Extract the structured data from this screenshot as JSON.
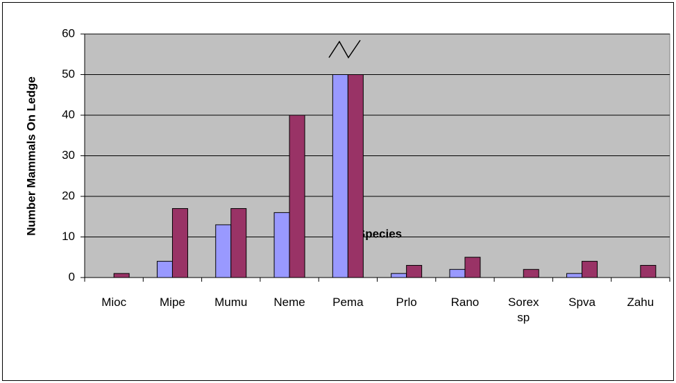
{
  "chart_data": {
    "type": "bar",
    "x_label": "Species",
    "y_label": "Number Mammals On Ledge",
    "categories": [
      "Mioc",
      "Mipe",
      "Mumu",
      "Neme",
      "Pema",
      "Prlo",
      "Rano",
      "Sorex sp",
      "Spva",
      "Zahu"
    ],
    "series": [
      {
        "color": "#9999ff",
        "values": [
          0,
          4,
          13,
          16,
          50,
          1,
          2,
          0,
          1,
          0
        ]
      },
      {
        "color": "#993366",
        "values": [
          1,
          17,
          17,
          40,
          50,
          3,
          5,
          2,
          4,
          3
        ]
      }
    ],
    "ylim": [
      0,
      60
    ],
    "yticks": [
      0,
      10,
      20,
      30,
      40,
      50,
      60
    ],
    "grid": true,
    "plot_background": "#c0c0c0"
  }
}
